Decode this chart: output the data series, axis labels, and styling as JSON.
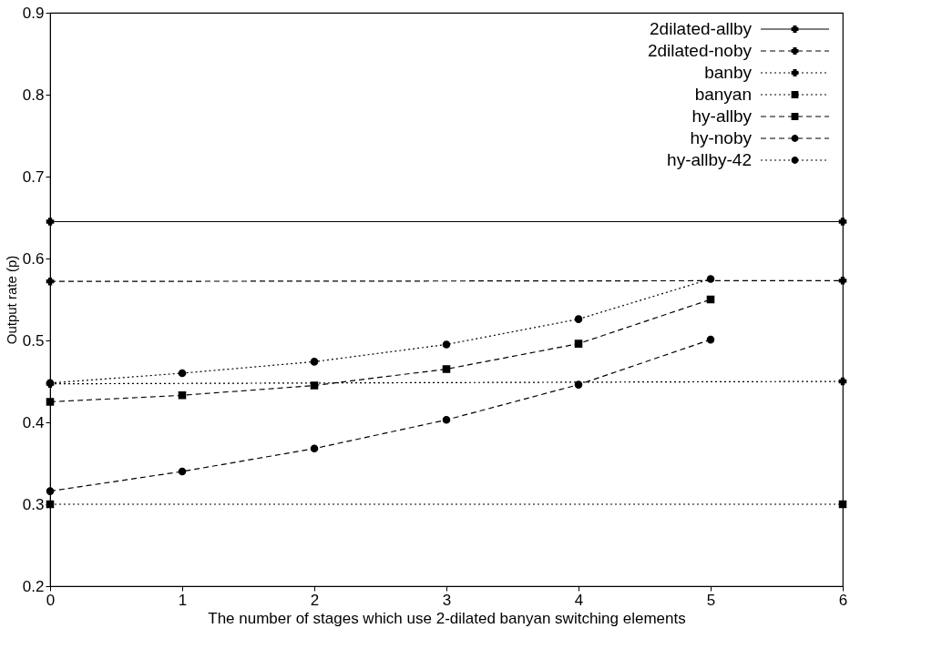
{
  "chart_data": {
    "type": "line",
    "xlabel": "The number of stages which use 2-dilated banyan switching elements",
    "ylabel": "Output rate (p)",
    "xlim": [
      0,
      6
    ],
    "xticks": [
      0,
      1,
      2,
      3,
      4,
      5,
      6
    ],
    "ylim": [
      0.2,
      0.9
    ],
    "yticks": [
      0.2,
      0.3,
      0.4,
      0.5,
      0.6,
      0.7,
      0.8,
      0.9
    ],
    "grid": false,
    "legend": "top right",
    "series": [
      {
        "name": "2dilated-allby",
        "color": "#000000",
        "x": [
          0,
          6
        ],
        "values": [
          0.645,
          0.645
        ],
        "marker": "cross",
        "line_style": "solid"
      },
      {
        "name": "2dilated-noby",
        "color": "#000000",
        "x": [
          0,
          6
        ],
        "values": [
          0.572,
          0.573
        ],
        "marker": "cross",
        "line_style": "dashed"
      },
      {
        "name": "banby",
        "color": "#000000",
        "x": [
          0,
          6
        ],
        "values": [
          0.447,
          0.45
        ],
        "marker": "cross",
        "line_style": "dotted"
      },
      {
        "name": "banyan",
        "color": "#000000",
        "x": [
          0,
          6
        ],
        "values": [
          0.3,
          0.3
        ],
        "marker": "square",
        "line_style": "dotted"
      },
      {
        "name": "hy-allby",
        "color": "#000000",
        "x": [
          0,
          1,
          2,
          3,
          4,
          5
        ],
        "values": [
          0.425,
          0.433,
          0.445,
          0.465,
          0.496,
          0.55
        ],
        "marker": "square",
        "line_style": "dashed"
      },
      {
        "name": "hy-noby",
        "color": "#000000",
        "x": [
          0,
          1,
          2,
          3,
          4,
          5
        ],
        "values": [
          0.316,
          0.34,
          0.368,
          0.403,
          0.446,
          0.501
        ],
        "marker": "circle",
        "line_style": "dashed"
      },
      {
        "name": "hy-allby-42",
        "color": "#000000",
        "x": [
          0,
          1,
          2,
          3,
          4,
          5
        ],
        "values": [
          0.448,
          0.46,
          0.474,
          0.495,
          0.526,
          0.575
        ],
        "marker": "circle",
        "line_style": "dotted"
      }
    ]
  }
}
